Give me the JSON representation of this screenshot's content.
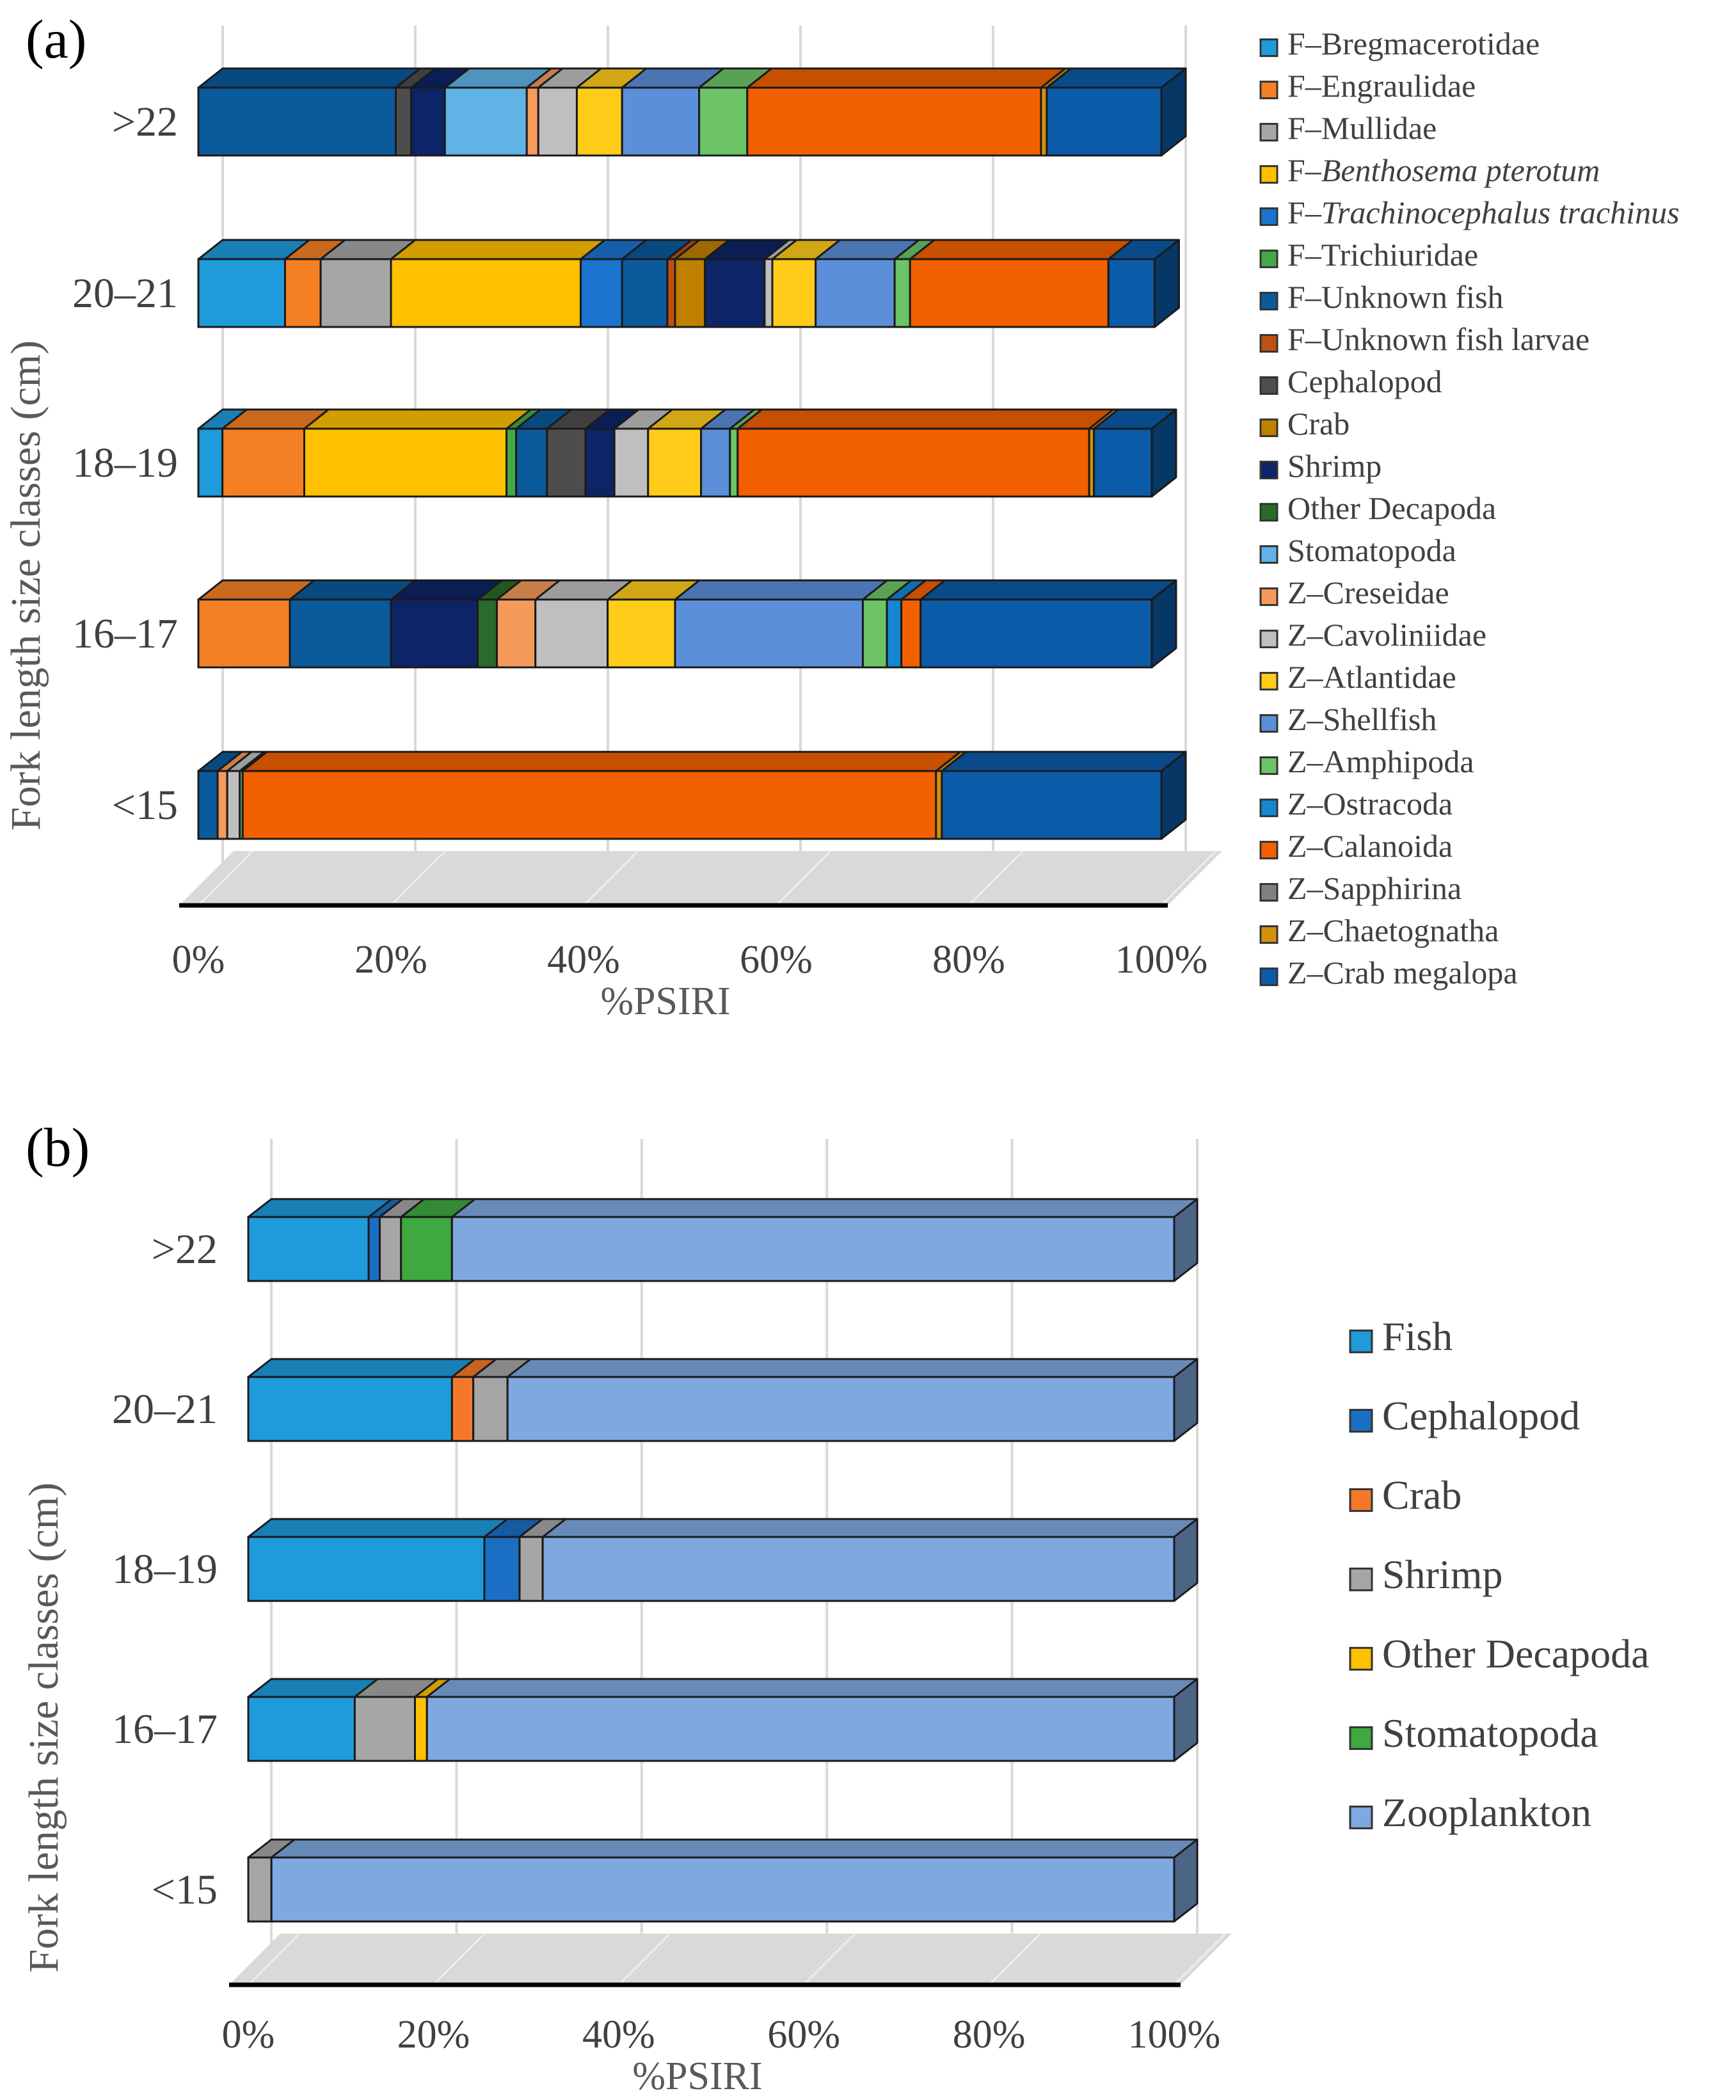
{
  "chart_data": [
    {
      "type": "bar",
      "orientation": "horizontal",
      "stacked": "percent",
      "panel_label": "(a)",
      "title": "",
      "xlabel": "%PSIRI",
      "ylabel": "Fork length size classes (cm)",
      "xlim": [
        0,
        100
      ],
      "xticks": [
        0,
        20,
        40,
        60,
        80,
        100
      ],
      "xtick_labels": [
        "0%",
        "20%",
        "40%",
        "60%",
        "80%",
        "100%"
      ],
      "grid": true,
      "legend_position": "right",
      "categories": [
        ">22",
        "20–21",
        "18–19",
        "16–17",
        "<15"
      ],
      "series": [
        {
          "name": "F–Bregmacerotidae",
          "name_parts": [
            {
              "text": "F–Bregmacerotidae",
              "italic": false
            }
          ],
          "color": "#1F9BDB",
          "values": [
            0,
            9.0,
            2.5,
            0,
            0
          ]
        },
        {
          "name": "F–Engraulidae",
          "name_parts": [
            {
              "text": "F–Engraulidae",
              "italic": false
            }
          ],
          "color": "#F58024",
          "values": [
            0,
            3.7,
            8.5,
            9.5,
            0
          ]
        },
        {
          "name": "F–Mullidae",
          "name_parts": [
            {
              "text": "F–Mullidae",
              "italic": false
            }
          ],
          "color": "#A6A6A6",
          "values": [
            0,
            7.3,
            0,
            0,
            0
          ]
        },
        {
          "name": "F–Benthosema pterotum",
          "name_parts": [
            {
              "text": "F–",
              "italic": false
            },
            {
              "text": "Benthosema pterotum",
              "italic": true
            }
          ],
          "color": "#FFC000",
          "values": [
            0,
            19.7,
            21.0,
            0,
            0
          ]
        },
        {
          "name": "F–Trachinocephalus trachinus",
          "name_parts": [
            {
              "text": "F–",
              "italic": false
            },
            {
              "text": "Trachinocephalus trachinus",
              "italic": true
            }
          ],
          "color": "#1A74CF",
          "values": [
            0,
            4.3,
            0,
            0,
            0
          ]
        },
        {
          "name": "F–Trichiuridae",
          "name_parts": [
            {
              "text": "F–Trichiuridae",
              "italic": false
            }
          ],
          "color": "#43A84A",
          "values": [
            0,
            0,
            1.0,
            0,
            0
          ]
        },
        {
          "name": "F–Unknown fish",
          "name_parts": [
            {
              "text": "F–Unknown fish",
              "italic": false
            }
          ],
          "color": "#0A5A9C",
          "values": [
            20.5,
            4.7,
            3.2,
            10.5,
            2.0
          ]
        },
        {
          "name": "F–Unknown fish larvae",
          "name_parts": [
            {
              "text": "F–Unknown fish larvae",
              "italic": false
            }
          ],
          "color": "#C0500F",
          "values": [
            0,
            0.8,
            0,
            0,
            0
          ]
        },
        {
          "name": "Cephalopod",
          "name_parts": [
            {
              "text": "Cephalopod",
              "italic": false
            }
          ],
          "color": "#4D4D4D",
          "values": [
            1.6,
            0,
            4.0,
            0,
            0
          ]
        },
        {
          "name": "Crab",
          "name_parts": [
            {
              "text": "Crab",
              "italic": false
            }
          ],
          "color": "#C08000",
          "values": [
            0,
            3.1,
            0,
            0,
            0
          ]
        },
        {
          "name": "Shrimp",
          "name_parts": [
            {
              "text": "Shrimp",
              "italic": false
            }
          ],
          "color": "#0D2566",
          "values": [
            3.5,
            6.2,
            3.0,
            9.0,
            0
          ]
        },
        {
          "name": "Other Decapoda",
          "name_parts": [
            {
              "text": "Other Decapoda",
              "italic": false
            }
          ],
          "color": "#2A6A2A",
          "values": [
            0,
            0,
            0,
            2.0,
            0
          ]
        },
        {
          "name": "Stomatopoda",
          "name_parts": [
            {
              "text": "Stomatopoda",
              "italic": false
            }
          ],
          "color": "#5FB4E5",
          "values": [
            8.5,
            0,
            0,
            0,
            0
          ]
        },
        {
          "name": "Z–Creseidae",
          "name_parts": [
            {
              "text": "Z–Creseidae",
              "italic": false
            }
          ],
          "color": "#F59A5A",
          "values": [
            1.2,
            0,
            0,
            4.0,
            1.0
          ]
        },
        {
          "name": "Z–Cavoliniidae",
          "name_parts": [
            {
              "text": "Z–Cavoliniidae",
              "italic": false
            }
          ],
          "color": "#BFBFBF",
          "values": [
            4.0,
            0.8,
            3.5,
            7.5,
            1.3
          ]
        },
        {
          "name": "Z–Atlantidae",
          "name_parts": [
            {
              "text": "Z–Atlantidae",
              "italic": false
            }
          ],
          "color": "#FFCC1A",
          "values": [
            4.7,
            4.5,
            5.5,
            7.0,
            0
          ]
        },
        {
          "name": "Z–Shellfish",
          "name_parts": [
            {
              "text": "Z–Shellfish",
              "italic": false
            }
          ],
          "color": "#5B8FD9",
          "values": [
            8.0,
            8.2,
            3.0,
            19.5,
            0
          ]
        },
        {
          "name": "Z–Amphipoda",
          "name_parts": [
            {
              "text": "Z–Amphipoda",
              "italic": false
            }
          ],
          "color": "#6CC466",
          "values": [
            5.0,
            1.6,
            0.8,
            2.5,
            0.3
          ]
        },
        {
          "name": "Z–Ostracoda",
          "name_parts": [
            {
              "text": "Z–Ostracoda",
              "italic": false
            }
          ],
          "color": "#1587D1",
          "values": [
            0,
            0,
            0,
            1.5,
            0
          ]
        },
        {
          "name": "Z–Calanoida",
          "name_parts": [
            {
              "text": "Z–Calanoida",
              "italic": false
            }
          ],
          "color": "#F26000",
          "values": [
            30.5,
            20.6,
            36.5,
            2.0,
            72.0
          ]
        },
        {
          "name": "Z–Sapphirina",
          "name_parts": [
            {
              "text": "Z–Sapphirina",
              "italic": false
            }
          ],
          "color": "#808080",
          "values": [
            0,
            0,
            0,
            0,
            0
          ]
        },
        {
          "name": "Z–Chaetognatha",
          "name_parts": [
            {
              "text": "Z–Chaetognatha",
              "italic": false
            }
          ],
          "color": "#D4910A",
          "values": [
            0.6,
            0,
            0.5,
            0,
            0.6
          ]
        },
        {
          "name": "Z–Crab megalopa",
          "name_parts": [
            {
              "text": "Z–Crab megalopa",
              "italic": false
            }
          ],
          "color": "#0B5CA8",
          "values": [
            11.9,
            4.8,
            6.0,
            24.0,
            22.8
          ]
        }
      ]
    },
    {
      "type": "bar",
      "orientation": "horizontal",
      "stacked": "percent",
      "panel_label": "(b)",
      "title": "",
      "xlabel": "%PSIRI",
      "ylabel": "Fork length size classes (cm)",
      "xlim": [
        0,
        100
      ],
      "xticks": [
        0,
        20,
        40,
        60,
        80,
        100
      ],
      "xtick_labels": [
        "0%",
        "20%",
        "40%",
        "60%",
        "80%",
        "100%"
      ],
      "grid": true,
      "legend_position": "right",
      "categories": [
        ">22",
        "20–21",
        "18–19",
        "16–17",
        "<15"
      ],
      "series": [
        {
          "name": "Fish",
          "color": "#1F9BDB",
          "values": [
            13.0,
            22.0,
            25.5,
            11.5,
            0
          ]
        },
        {
          "name": "Cephalopod",
          "color": "#1A6FC4",
          "values": [
            1.2,
            0,
            3.8,
            0,
            0
          ]
        },
        {
          "name": "Crab",
          "color": "#F5782A",
          "values": [
            0,
            2.3,
            0,
            0,
            0
          ]
        },
        {
          "name": "Shrimp",
          "color": "#A6A6A6",
          "values": [
            2.3,
            3.7,
            2.5,
            6.5,
            2.5
          ]
        },
        {
          "name": "Other Decapoda",
          "color": "#FFC000",
          "values": [
            0,
            0,
            0,
            1.3,
            0
          ]
        },
        {
          "name": "Stomatopoda",
          "color": "#3FA83F",
          "values": [
            5.5,
            0,
            0,
            0,
            0
          ]
        },
        {
          "name": "Zooplankton",
          "color": "#7FA8E0",
          "values": [
            78.0,
            72.0,
            68.2,
            80.7,
            97.5
          ]
        }
      ]
    }
  ]
}
